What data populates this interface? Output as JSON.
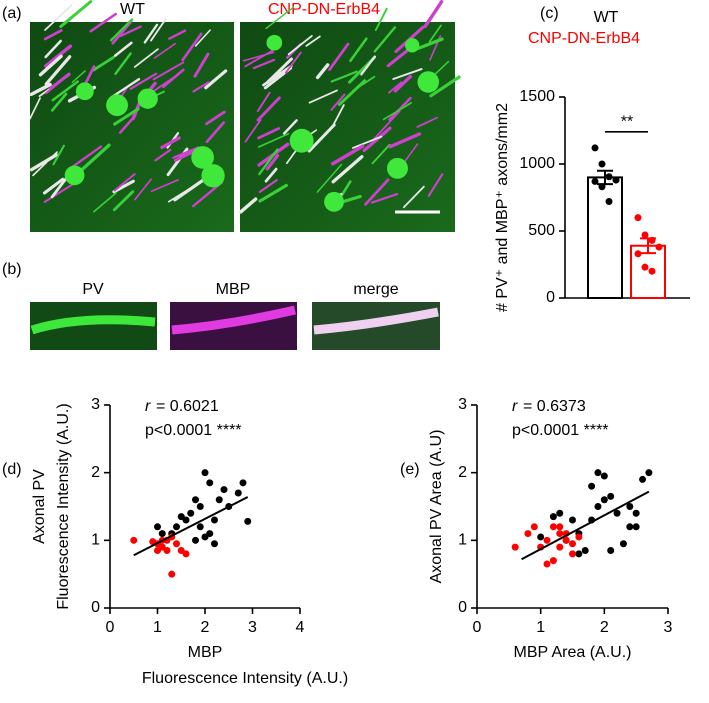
{
  "panels": {
    "a": {
      "label": "(a)",
      "left": "WT",
      "right": "CNP-DN-ErbB4"
    },
    "b": {
      "label": "(b)",
      "channels": [
        "PV",
        "MBP",
        "merge"
      ]
    }
  },
  "chart_data": [
    {
      "type": "bar",
      "panel_label": "(c)",
      "ylabel": "# PV⁺ and MBP⁺ axons/mm2",
      "ylim": [
        0,
        1500
      ],
      "yticks": [
        0,
        500,
        1000,
        1500
      ],
      "significance": "**",
      "series": [
        {
          "name": "WT",
          "color": "#000000",
          "values": [
            900
          ],
          "errors": [
            50
          ],
          "points": [
            1120,
            1000,
            905,
            880,
            870,
            830,
            720
          ]
        },
        {
          "name": "CNP-DN-ErbB4",
          "color": "#ff0000",
          "values": [
            390
          ],
          "errors": [
            55
          ],
          "points": [
            600,
            470,
            430,
            380,
            330,
            230,
            200
          ]
        }
      ]
    },
    {
      "type": "scatter",
      "panel_label": "(d)",
      "r_symbol": "r",
      "r_text": "= 0.6021",
      "p_text": "p<0.0001 ****",
      "ylabel": [
        "Axonal PV",
        "Fluorescence Intensity (A.U.)"
      ],
      "xlabel": [
        "MBP",
        "Fluorescence Intensity (A.U.)"
      ],
      "xlim": [
        0,
        4
      ],
      "ylim": [
        0,
        3
      ],
      "xticks": [
        0,
        1,
        2,
        3,
        4
      ],
      "yticks": [
        0,
        1,
        2,
        3
      ],
      "fit": {
        "x": [
          0.5,
          2.9
        ],
        "y": [
          0.78,
          1.64
        ]
      },
      "series": [
        {
          "color": "#000000",
          "x": [
            1.0,
            1.1,
            1.4,
            1.5,
            1.6,
            1.7,
            1.8,
            1.9,
            2.0,
            2.1,
            1.9,
            2.0,
            2.1,
            2.2,
            2.3,
            2.4,
            2.5,
            2.7,
            2.8,
            2.9,
            1.8,
            2.2,
            1.3
          ],
          "y": [
            1.2,
            1.1,
            1.2,
            1.35,
            1.3,
            1.4,
            1.6,
            1.5,
            2.0,
            1.85,
            1.2,
            1.05,
            1.1,
            1.3,
            1.6,
            1.75,
            1.5,
            1.7,
            1.85,
            1.28,
            1.0,
            0.95,
            1.1
          ]
        },
        {
          "color": "#ff0000",
          "x": [
            0.5,
            0.9,
            1.0,
            1.1,
            1.2,
            1.2,
            1.3,
            1.3,
            1.0,
            1.5,
            1.6,
            1.4,
            1.1
          ],
          "y": [
            1.0,
            0.98,
            0.95,
            1.0,
            1.0,
            0.85,
            1.05,
            0.5,
            0.85,
            0.85,
            0.8,
            0.95,
            0.9
          ]
        }
      ]
    },
    {
      "type": "scatter",
      "panel_label": "(e)",
      "r_symbol": "r",
      "r_text": "= 0.6373",
      "p_text": "p<0.0001 ****",
      "ylabel": [
        "Axonal PV Area (A.U)"
      ],
      "xlabel": [
        "MBP Area (A.U.)"
      ],
      "xlim": [
        0,
        3
      ],
      "ylim": [
        0,
        3
      ],
      "xticks": [
        0,
        1,
        2,
        3
      ],
      "yticks": [
        0,
        1,
        2,
        3
      ],
      "fit": {
        "x": [
          0.7,
          2.7
        ],
        "y": [
          0.72,
          1.72
        ]
      },
      "series": [
        {
          "color": "#000000",
          "x": [
            1.2,
            1.3,
            1.4,
            1.5,
            1.6,
            1.7,
            1.8,
            1.9,
            1.9,
            2.0,
            2.0,
            2.1,
            1.8,
            1.6,
            2.1,
            2.2,
            2.3,
            2.4,
            2.4,
            2.5,
            2.6,
            2.7,
            2.5,
            1.0
          ],
          "y": [
            1.35,
            1.4,
            1.0,
            1.3,
            1.1,
            0.85,
            1.3,
            1.5,
            2.0,
            1.95,
            1.6,
            1.65,
            1.8,
            0.8,
            0.85,
            1.4,
            0.95,
            1.5,
            1.2,
            1.4,
            1.9,
            2.0,
            1.2,
            1.05
          ]
        },
        {
          "color": "#ff0000",
          "x": [
            0.6,
            0.8,
            0.9,
            1.0,
            1.1,
            1.1,
            1.2,
            1.2,
            1.3,
            1.3,
            1.4,
            1.4,
            1.5,
            1.5,
            1.6,
            1.3
          ],
          "y": [
            0.9,
            1.1,
            1.2,
            0.9,
            1.0,
            0.65,
            0.7,
            1.2,
            1.1,
            0.9,
            1.0,
            1.1,
            0.95,
            0.8,
            1.05,
            1.2
          ]
        }
      ]
    }
  ]
}
